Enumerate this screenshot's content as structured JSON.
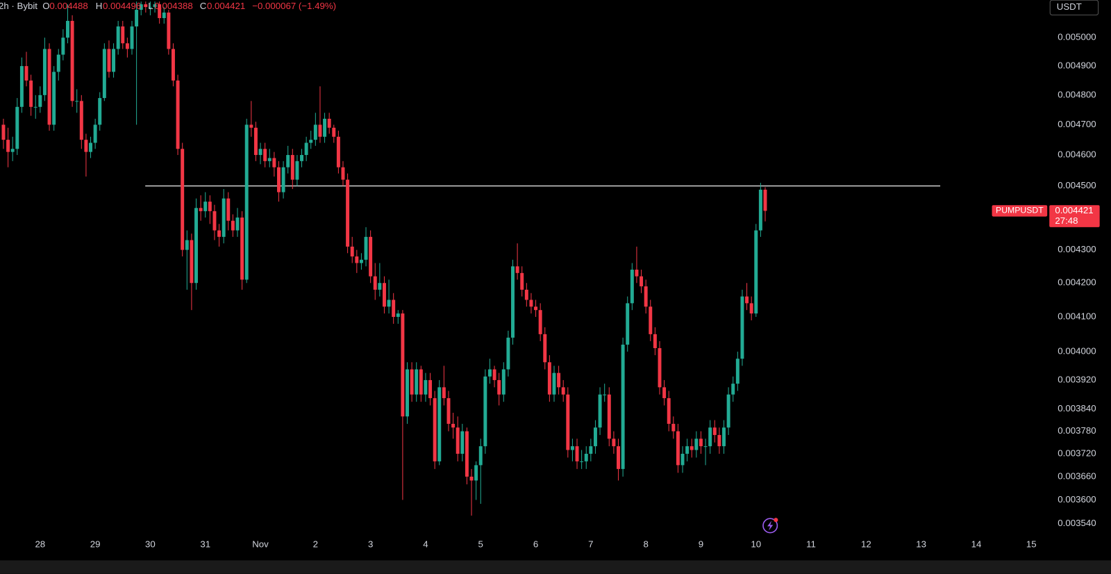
{
  "chart_data": {
    "type": "candlestick",
    "log_scale": true,
    "grid": false,
    "up_color": "#22ab94",
    "down_color": "#f23645",
    "header": {
      "interval": "2h · Bybit",
      "o_label": "O",
      "o": "0.004488",
      "h_label": "H",
      "h": "0.004496",
      "l_label": "L",
      "l": "0.004388",
      "c_label": "C",
      "c": "0.004421",
      "change": "−0.000067 (−1.49%)"
    },
    "currency": "USDT",
    "price_tag": {
      "symbol": "PUMPUSDT",
      "price": 0.004421,
      "countdown": "27:48"
    },
    "hline": 0.0045,
    "xlim": [
      -17.5,
      438
    ],
    "xticks": [
      {
        "value": 0,
        "label": "28"
      },
      {
        "value": 24,
        "label": "29"
      },
      {
        "value": 48,
        "label": "30"
      },
      {
        "value": 72,
        "label": "31"
      },
      {
        "value": 96,
        "label": "Nov"
      },
      {
        "value": 120,
        "label": "2"
      },
      {
        "value": 144,
        "label": "3"
      },
      {
        "value": 168,
        "label": "4"
      },
      {
        "value": 192,
        "label": "5"
      },
      {
        "value": 216,
        "label": "6"
      },
      {
        "value": 240,
        "label": "7"
      },
      {
        "value": 264,
        "label": "8"
      },
      {
        "value": 288,
        "label": "9"
      },
      {
        "value": 312,
        "label": "10"
      },
      {
        "value": 336,
        "label": "11"
      },
      {
        "value": 360,
        "label": "12"
      },
      {
        "value": 384,
        "label": "13"
      },
      {
        "value": 408,
        "label": "14"
      },
      {
        "value": 432,
        "label": "15"
      }
    ],
    "ylim": [
      0.00351,
      0.005135
    ],
    "yticks": [
      {
        "value": 0.005,
        "label": "0.005000"
      },
      {
        "value": 0.0049,
        "label": "0.004900"
      },
      {
        "value": 0.0048,
        "label": "0.004800"
      },
      {
        "value": 0.0047,
        "label": "0.004700"
      },
      {
        "value": 0.0046,
        "label": "0.004600"
      },
      {
        "value": 0.0045,
        "label": "0.004500"
      },
      {
        "value": 0.0043,
        "label": "0.004300"
      },
      {
        "value": 0.0042,
        "label": "0.004200"
      },
      {
        "value": 0.0041,
        "label": "0.004100"
      },
      {
        "value": 0.004,
        "label": "0.004000"
      },
      {
        "value": 0.00392,
        "label": "0.003920"
      },
      {
        "value": 0.00384,
        "label": "0.003840"
      },
      {
        "value": 0.00378,
        "label": "0.003780"
      },
      {
        "value": 0.00372,
        "label": "0.003720"
      },
      {
        "value": 0.00366,
        "label": "0.003660"
      },
      {
        "value": 0.0036,
        "label": "0.003600"
      },
      {
        "value": 0.00354,
        "label": "0.003540"
      }
    ],
    "x": [
      -16,
      -14,
      -12,
      -10,
      -8,
      -6,
      -4,
      -2,
      0,
      2,
      4,
      6,
      8,
      10,
      12,
      14,
      16,
      18,
      20,
      22,
      24,
      26,
      28,
      30,
      32,
      34,
      36,
      38,
      40,
      42,
      44,
      46,
      48,
      50,
      52,
      54,
      56,
      58,
      60,
      62,
      64,
      66,
      68,
      70,
      72,
      74,
      76,
      78,
      80,
      82,
      84,
      86,
      88,
      90,
      92,
      94,
      96,
      98,
      100,
      102,
      104,
      106,
      108,
      110,
      112,
      114,
      116,
      118,
      120,
      122,
      124,
      126,
      128,
      130,
      132,
      134,
      136,
      138,
      140,
      142,
      144,
      146,
      148,
      150,
      152,
      154,
      156,
      158,
      160,
      162,
      164,
      166,
      168,
      170,
      172,
      174,
      176,
      178,
      180,
      182,
      184,
      186,
      188,
      190,
      192,
      194,
      196,
      198,
      200,
      202,
      204,
      206,
      208,
      210,
      212,
      214,
      216,
      218,
      220,
      222,
      224,
      226,
      228,
      230,
      232,
      234,
      236,
      238,
      240,
      242,
      244,
      246,
      248,
      250,
      252,
      254,
      256,
      258,
      260,
      262,
      264,
      266,
      268,
      270,
      272,
      274,
      276,
      278,
      280,
      282,
      284,
      286,
      288,
      290,
      292,
      294,
      296,
      298,
      300,
      302,
      304,
      306,
      308,
      310,
      312,
      314,
      316
    ],
    "candles": [
      [
        0.0047,
        0.00472,
        0.00462,
        0.00465
      ],
      [
        0.00465,
        0.00469,
        0.00456,
        0.00461
      ],
      [
        0.00461,
        0.00466,
        0.00458,
        0.00462
      ],
      [
        0.00462,
        0.00479,
        0.0046,
        0.00476
      ],
      [
        0.00476,
        0.00493,
        0.00474,
        0.0049
      ],
      [
        0.0049,
        0.00495,
        0.00483,
        0.00485
      ],
      [
        0.00485,
        0.00487,
        0.00473,
        0.00476
      ],
      [
        0.00476,
        0.0048,
        0.00472,
        0.00476
      ],
      [
        0.00476,
        0.00483,
        0.00474,
        0.0048
      ],
      [
        0.0048,
        0.005,
        0.00478,
        0.00496
      ],
      [
        0.00496,
        0.00498,
        0.00468,
        0.0047
      ],
      [
        0.0047,
        0.0049,
        0.00468,
        0.00488
      ],
      [
        0.00488,
        0.00496,
        0.00485,
        0.00494
      ],
      [
        0.00494,
        0.00503,
        0.00492,
        0.005
      ],
      [
        0.005,
        0.00512,
        0.00498,
        0.00506
      ],
      [
        0.00506,
        0.00508,
        0.00476,
        0.00478
      ],
      [
        0.00478,
        0.00482,
        0.00474,
        0.00478
      ],
      [
        0.00478,
        0.0048,
        0.00462,
        0.00465
      ],
      [
        0.00465,
        0.00467,
        0.00453,
        0.00461
      ],
      [
        0.00461,
        0.00466,
        0.00459,
        0.00464
      ],
      [
        0.00464,
        0.00472,
        0.00462,
        0.0047
      ],
      [
        0.0047,
        0.00481,
        0.00468,
        0.00479
      ],
      [
        0.00479,
        0.00498,
        0.00478,
        0.00496
      ],
      [
        0.00496,
        0.00499,
        0.00486,
        0.00488
      ],
      [
        0.00488,
        0.00498,
        0.00486,
        0.00496
      ],
      [
        0.00496,
        0.00506,
        0.00494,
        0.00504
      ],
      [
        0.00504,
        0.00506,
        0.00496,
        0.00498
      ],
      [
        0.00498,
        0.005,
        0.00493,
        0.00496
      ],
      [
        0.00496,
        0.00506,
        0.00494,
        0.00504
      ],
      [
        0.00504,
        0.00513,
        0.0047,
        0.0051
      ],
      [
        0.0051,
        0.00513,
        0.00508,
        0.00512
      ],
      [
        0.00512,
        0.00513,
        0.00509,
        0.00511
      ],
      [
        0.00511,
        0.00513,
        0.00508,
        0.00511
      ],
      [
        0.00511,
        0.00513,
        0.00509,
        0.00512
      ],
      [
        0.00512,
        0.00513,
        0.00505,
        0.00507
      ],
      [
        0.00507,
        0.00511,
        0.00505,
        0.00509
      ],
      [
        0.00509,
        0.0051,
        0.00494,
        0.00496
      ],
      [
        0.00496,
        0.00498,
        0.00483,
        0.00485
      ],
      [
        0.00485,
        0.00487,
        0.0046,
        0.00462
      ],
      [
        0.00462,
        0.00464,
        0.00428,
        0.0043
      ],
      [
        0.0043,
        0.00436,
        0.00418,
        0.00433
      ],
      [
        0.00433,
        0.00435,
        0.00412,
        0.0042
      ],
      [
        0.0042,
        0.00446,
        0.00418,
        0.00443
      ],
      [
        0.00443,
        0.00447,
        0.00439,
        0.00442
      ],
      [
        0.00442,
        0.00448,
        0.0044,
        0.00445
      ],
      [
        0.00445,
        0.00447,
        0.00438,
        0.00442
      ],
      [
        0.00442,
        0.00444,
        0.00433,
        0.00436
      ],
      [
        0.00436,
        0.00438,
        0.00431,
        0.00434
      ],
      [
        0.00434,
        0.00449,
        0.00432,
        0.00446
      ],
      [
        0.00446,
        0.00448,
        0.00436,
        0.00439
      ],
      [
        0.00439,
        0.00441,
        0.00434,
        0.00436
      ],
      [
        0.00436,
        0.00443,
        0.00434,
        0.0044
      ],
      [
        0.0044,
        0.00442,
        0.00418,
        0.00421
      ],
      [
        0.00421,
        0.00472,
        0.0042,
        0.0047
      ],
      [
        0.0047,
        0.00478,
        0.00466,
        0.00469
      ],
      [
        0.00469,
        0.00471,
        0.00458,
        0.0046
      ],
      [
        0.0046,
        0.00464,
        0.00457,
        0.00462
      ],
      [
        0.00462,
        0.00464,
        0.00456,
        0.00458
      ],
      [
        0.00458,
        0.00462,
        0.00456,
        0.00459
      ],
      [
        0.00459,
        0.00461,
        0.00453,
        0.00456
      ],
      [
        0.00456,
        0.00458,
        0.00445,
        0.00448
      ],
      [
        0.00448,
        0.00458,
        0.00446,
        0.00456
      ],
      [
        0.00456,
        0.00463,
        0.00454,
        0.0046
      ],
      [
        0.0046,
        0.00462,
        0.00449,
        0.00452
      ],
      [
        0.00452,
        0.0046,
        0.0045,
        0.00458
      ],
      [
        0.00458,
        0.00462,
        0.00456,
        0.0046
      ],
      [
        0.0046,
        0.00466,
        0.00458,
        0.00464
      ],
      [
        0.00464,
        0.00468,
        0.00462,
        0.00465
      ],
      [
        0.00465,
        0.00474,
        0.00463,
        0.0047
      ],
      [
        0.0047,
        0.00483,
        0.00464,
        0.00466
      ],
      [
        0.00466,
        0.00474,
        0.00464,
        0.00472
      ],
      [
        0.00472,
        0.00474,
        0.00467,
        0.00469
      ],
      [
        0.00469,
        0.0047,
        0.00464,
        0.00466
      ],
      [
        0.00466,
        0.00468,
        0.00454,
        0.00456
      ],
      [
        0.00456,
        0.00458,
        0.0045,
        0.00452
      ],
      [
        0.00452,
        0.00454,
        0.00429,
        0.00431
      ],
      [
        0.00431,
        0.00434,
        0.00426,
        0.00428
      ],
      [
        0.00428,
        0.0043,
        0.00423,
        0.00426
      ],
      [
        0.00426,
        0.00429,
        0.00424,
        0.00427
      ],
      [
        0.00427,
        0.00437,
        0.00425,
        0.00434
      ],
      [
        0.00434,
        0.00436,
        0.0042,
        0.00422
      ],
      [
        0.00422,
        0.00426,
        0.00415,
        0.00418
      ],
      [
        0.00418,
        0.00426,
        0.00416,
        0.0042
      ],
      [
        0.0042,
        0.00422,
        0.00411,
        0.00413
      ],
      [
        0.00413,
        0.00421,
        0.00411,
        0.00415
      ],
      [
        0.00415,
        0.00417,
        0.00408,
        0.0041
      ],
      [
        0.0041,
        0.00412,
        0.00408,
        0.00411
      ],
      [
        0.00411,
        0.00412,
        0.0036,
        0.00382
      ],
      [
        0.00382,
        0.00397,
        0.0038,
        0.00395
      ],
      [
        0.00395,
        0.00397,
        0.00386,
        0.00388
      ],
      [
        0.00388,
        0.00397,
        0.00386,
        0.00395
      ],
      [
        0.00395,
        0.00396,
        0.00386,
        0.00388
      ],
      [
        0.00388,
        0.00394,
        0.00386,
        0.00392
      ],
      [
        0.00392,
        0.00394,
        0.00385,
        0.00387
      ],
      [
        0.00387,
        0.00389,
        0.00368,
        0.0037
      ],
      [
        0.0037,
        0.00392,
        0.00369,
        0.0039
      ],
      [
        0.0039,
        0.00396,
        0.00385,
        0.00387
      ],
      [
        0.00387,
        0.00389,
        0.00378,
        0.0038
      ],
      [
        0.0038,
        0.00383,
        0.00376,
        0.00379
      ],
      [
        0.00379,
        0.00382,
        0.0037,
        0.00372
      ],
      [
        0.00372,
        0.0038,
        0.0037,
        0.00378
      ],
      [
        0.00378,
        0.00379,
        0.00364,
        0.00366
      ],
      [
        0.00366,
        0.00368,
        0.00356,
        0.00365
      ],
      [
        0.00365,
        0.0037,
        0.0036,
        0.00369
      ],
      [
        0.00369,
        0.00376,
        0.00359,
        0.00374
      ],
      [
        0.00374,
        0.00395,
        0.00372,
        0.00393
      ],
      [
        0.00393,
        0.00398,
        0.00391,
        0.00395
      ],
      [
        0.00395,
        0.00396,
        0.0039,
        0.00392
      ],
      [
        0.00392,
        0.00394,
        0.00385,
        0.00388
      ],
      [
        0.00388,
        0.00397,
        0.00386,
        0.00395
      ],
      [
        0.00395,
        0.00406,
        0.00393,
        0.00404
      ],
      [
        0.00404,
        0.00427,
        0.00402,
        0.00425
      ],
      [
        0.00425,
        0.00432,
        0.00421,
        0.00423
      ],
      [
        0.00423,
        0.00425,
        0.00416,
        0.00418
      ],
      [
        0.00418,
        0.0042,
        0.00413,
        0.00415
      ],
      [
        0.00415,
        0.00417,
        0.00411,
        0.00413
      ],
      [
        0.00413,
        0.00415,
        0.0041,
        0.00412
      ],
      [
        0.00412,
        0.00414,
        0.00403,
        0.00405
      ],
      [
        0.00405,
        0.00407,
        0.00395,
        0.00397
      ],
      [
        0.00397,
        0.00399,
        0.00386,
        0.00388
      ],
      [
        0.00388,
        0.00396,
        0.00386,
        0.00394
      ],
      [
        0.00394,
        0.00396,
        0.00388,
        0.0039
      ],
      [
        0.0039,
        0.00392,
        0.00386,
        0.00388
      ],
      [
        0.00388,
        0.0039,
        0.00371,
        0.00373
      ],
      [
        0.00373,
        0.00376,
        0.0037,
        0.00374
      ],
      [
        0.00374,
        0.00376,
        0.00368,
        0.0037
      ],
      [
        0.0037,
        0.00373,
        0.00368,
        0.0037
      ],
      [
        0.0037,
        0.00374,
        0.00368,
        0.00372
      ],
      [
        0.00372,
        0.00376,
        0.0037,
        0.00374
      ],
      [
        0.00374,
        0.00381,
        0.00372,
        0.00379
      ],
      [
        0.00379,
        0.0039,
        0.00377,
        0.00388
      ],
      [
        0.00388,
        0.00391,
        0.00386,
        0.00388
      ],
      [
        0.00388,
        0.0039,
        0.00374,
        0.00376
      ],
      [
        0.00376,
        0.00378,
        0.00372,
        0.00374
      ],
      [
        0.00374,
        0.00376,
        0.00365,
        0.00368
      ],
      [
        0.00368,
        0.00404,
        0.00366,
        0.00402
      ],
      [
        0.00402,
        0.00416,
        0.004,
        0.00414
      ],
      [
        0.00414,
        0.00426,
        0.00412,
        0.00424
      ],
      [
        0.00424,
        0.00431,
        0.0042,
        0.00422
      ],
      [
        0.00422,
        0.00424,
        0.00417,
        0.00419
      ],
      [
        0.00419,
        0.00421,
        0.00411,
        0.00413
      ],
      [
        0.00413,
        0.00415,
        0.00403,
        0.00405
      ],
      [
        0.00405,
        0.00407,
        0.00399,
        0.00401
      ],
      [
        0.00401,
        0.00403,
        0.00388,
        0.0039
      ],
      [
        0.0039,
        0.00392,
        0.00385,
        0.00387
      ],
      [
        0.00387,
        0.00389,
        0.00378,
        0.0038
      ],
      [
        0.0038,
        0.00382,
        0.00376,
        0.00378
      ],
      [
        0.00378,
        0.0038,
        0.00367,
        0.00369
      ],
      [
        0.00369,
        0.00374,
        0.00367,
        0.00372
      ],
      [
        0.00372,
        0.00376,
        0.0037,
        0.00374
      ],
      [
        0.00374,
        0.00376,
        0.00371,
        0.00373
      ],
      [
        0.00373,
        0.00378,
        0.00371,
        0.00376
      ],
      [
        0.00376,
        0.00378,
        0.00372,
        0.00374
      ],
      [
        0.00374,
        0.00376,
        0.00369,
        0.00374
      ],
      [
        0.00374,
        0.00381,
        0.00372,
        0.00379
      ],
      [
        0.00379,
        0.00381,
        0.00375,
        0.00377
      ],
      [
        0.00377,
        0.00379,
        0.00372,
        0.00374
      ],
      [
        0.00374,
        0.00381,
        0.00372,
        0.00379
      ],
      [
        0.00379,
        0.0039,
        0.00377,
        0.00388
      ],
      [
        0.00388,
        0.00393,
        0.00386,
        0.00391
      ],
      [
        0.00391,
        0.004,
        0.00389,
        0.00398
      ],
      [
        0.00398,
        0.00418,
        0.00396,
        0.00416
      ],
      [
        0.00416,
        0.0042,
        0.00412,
        0.00414
      ],
      [
        0.00414,
        0.00416,
        0.00409,
        0.00411
      ],
      [
        0.00411,
        0.00438,
        0.0041,
        0.00436
      ],
      [
        0.00436,
        0.00451,
        0.00434,
        0.004488
      ],
      [
        0.004488,
        0.004496,
        0.004388,
        0.004421
      ]
    ]
  }
}
